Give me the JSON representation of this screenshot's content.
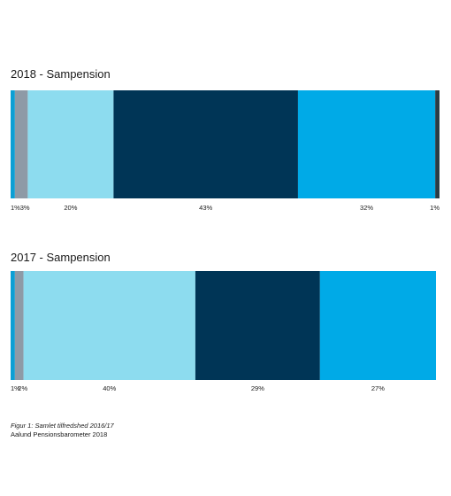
{
  "chart_data": [
    {
      "type": "bar",
      "orientation": "horizontal-stacked-100",
      "title": "2018  -  Sampension",
      "segments": [
        {
          "value": 1,
          "label": "1%",
          "color": "#0c9fd4"
        },
        {
          "value": 3,
          "label": "3%",
          "color": "#8e9aa6"
        },
        {
          "value": 20,
          "label": "20%",
          "color": "#8ddcef"
        },
        {
          "value": 43,
          "label": "43%",
          "color": "#003556"
        },
        {
          "value": 32,
          "label": "32%",
          "color": "#00aae7"
        },
        {
          "value": 1,
          "label": "1%",
          "color": "#2b3c44"
        }
      ]
    },
    {
      "type": "bar",
      "orientation": "horizontal-stacked-100",
      "title": "2017  -  Sampension",
      "segments": [
        {
          "value": 1,
          "label": "1%",
          "color": "#0c9fd4"
        },
        {
          "value": 2,
          "label": "2%",
          "color": "#8e9aa6"
        },
        {
          "value": 40,
          "label": "40%",
          "color": "#8ddcef"
        },
        {
          "value": 29,
          "label": "29%",
          "color": "#003556"
        },
        {
          "value": 27,
          "label": "27%",
          "color": "#00aae7"
        }
      ]
    }
  ],
  "caption": {
    "figure": "Figur 1: Samlet tilfredshed 2016/17",
    "source": "Aalund Pensionsbarometer 2018"
  }
}
